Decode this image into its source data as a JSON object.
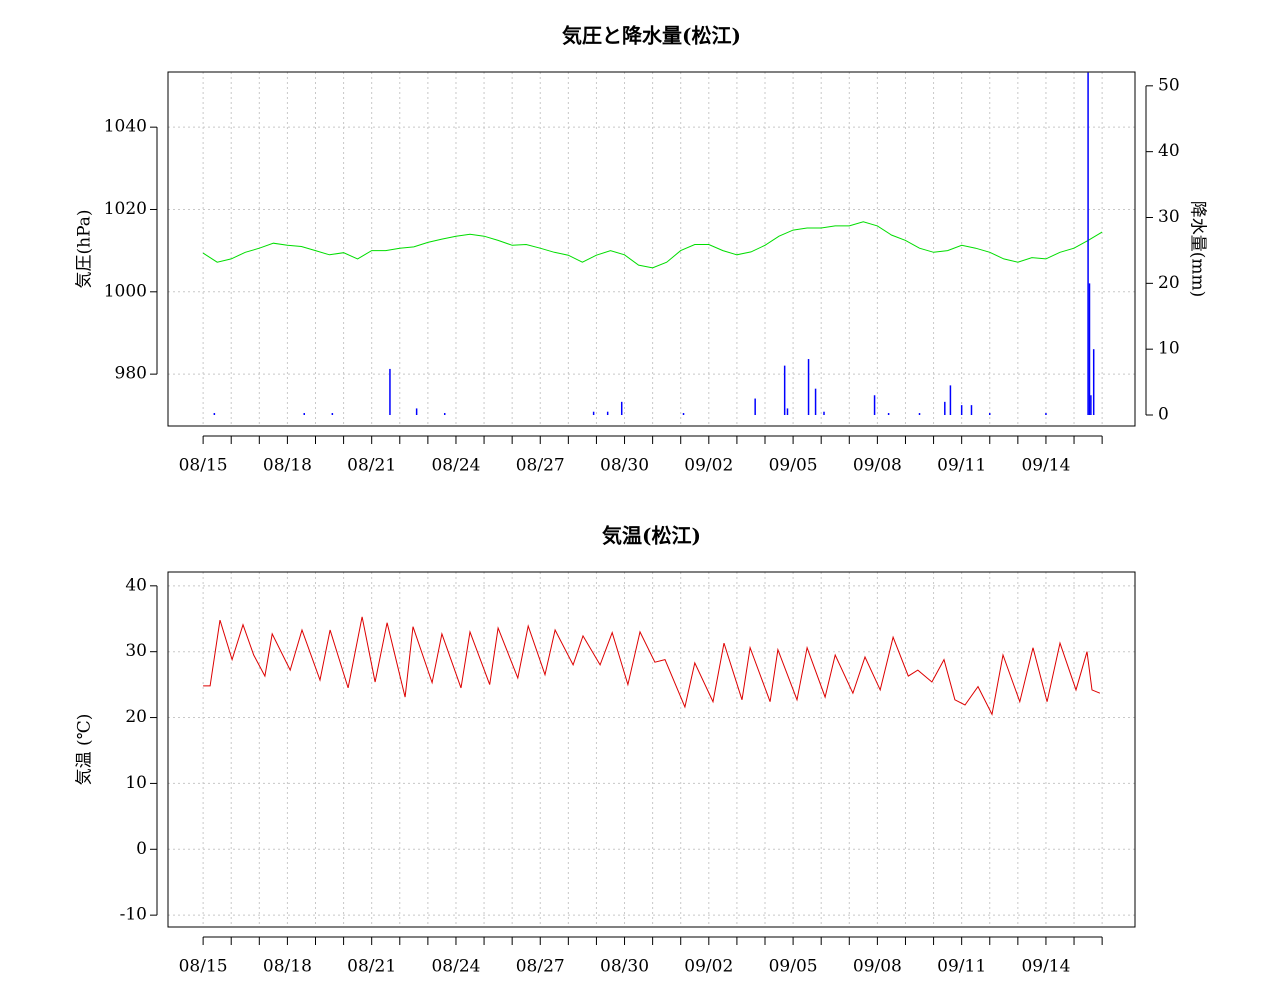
{
  "chart_data": [
    {
      "type": "line",
      "title": "気圧と降水量(松江)",
      "y_label": "気圧(hPa)",
      "y2_label": "降水量(mm)",
      "xlim": [
        -1.25,
        33.17
      ],
      "ylim": [
        967.4,
        1053.4
      ],
      "y2lim": [
        -1.67,
        52.1
      ],
      "xticks": [
        {
          "value": 0,
          "label": "08/15"
        },
        {
          "value": 3,
          "label": "08/18"
        },
        {
          "value": 6,
          "label": "08/21"
        },
        {
          "value": 9,
          "label": "08/24"
        },
        {
          "value": 12,
          "label": "08/27"
        },
        {
          "value": 15,
          "label": "08/30"
        },
        {
          "value": 18,
          "label": "09/02"
        },
        {
          "value": 21,
          "label": "09/05"
        },
        {
          "value": 24,
          "label": "09/08"
        },
        {
          "value": 27,
          "label": "09/11"
        },
        {
          "value": 30,
          "label": "09/14"
        }
      ],
      "xminor_ticks": [
        1,
        2,
        4,
        5,
        7,
        8,
        10,
        11,
        13,
        14,
        16,
        17,
        19,
        20,
        22,
        23,
        25,
        26,
        28,
        29,
        31,
        32
      ],
      "yticks": [
        980,
        1000,
        1020,
        1040
      ],
      "y2ticks": [
        0,
        10,
        20,
        30,
        40,
        50
      ],
      "grid": true,
      "series": [
        {
          "type": "line",
          "color": "#00dd00",
          "x": [
            0,
            0.5,
            1,
            1.5,
            2,
            2.5,
            3,
            3.5,
            4,
            4.5,
            5,
            5.5,
            6,
            6.5,
            7,
            7.5,
            8,
            8.5,
            9,
            9.5,
            10,
            10.5,
            11,
            11.5,
            12,
            12.5,
            13,
            13.5,
            14,
            14.5,
            15,
            15.5,
            16,
            16.5,
            17,
            17.5,
            18,
            18.5,
            19,
            19.5,
            20,
            20.5,
            21,
            21.5,
            22,
            22.5,
            23,
            23.5,
            24,
            24.5,
            25,
            25.5,
            26,
            26.5,
            27,
            27.5,
            28,
            28.5,
            29,
            29.5,
            30,
            30.5,
            31,
            31.5,
            32
          ],
          "values": [
            1009.4,
            1007.2,
            1008,
            1009.6,
            1010.6,
            1011.8,
            1011.3,
            1011,
            1010,
            1009,
            1009.5,
            1008,
            1010,
            1010,
            1010.6,
            1010.9,
            1012,
            1012.8,
            1013.5,
            1014,
            1013.5,
            1012.5,
            1011.3,
            1011.5,
            1010.6,
            1009.6,
            1008.9,
            1007.2,
            1008.9,
            1010,
            1009,
            1006.5,
            1005.8,
            1007.2,
            1010,
            1011.5,
            1011.5,
            1010,
            1009,
            1009.7,
            1011.3,
            1013.5,
            1015,
            1015.5,
            1015.5,
            1016,
            1016,
            1017,
            1016,
            1013.8,
            1012.5,
            1010.6,
            1009.6,
            1010,
            1011.3,
            1010.6,
            1009.6,
            1008,
            1007.2,
            1008.3,
            1008,
            1009.6,
            1010.6,
            1012.5,
            1014.5
          ]
        },
        {
          "type": "bar",
          "axis": "y2",
          "color": "#0000ff",
          "x": [
            0.4,
            3.6,
            4.6,
            6.65,
            7.6,
            8.6,
            13.9,
            14.4,
            14.9,
            17.1,
            19.65,
            20.7,
            20.8,
            21.55,
            21.8,
            22.1,
            23.9,
            24.4,
            25.5,
            26.4,
            26.6,
            27,
            27.35,
            28,
            30,
            31.5,
            31.55,
            31.6,
            31.7
          ],
          "values": [
            0.3,
            0.3,
            0.3,
            7,
            1,
            0.3,
            0.5,
            0.5,
            2,
            0.3,
            2.5,
            7.5,
            1,
            8.5,
            4,
            0.5,
            3,
            0.3,
            0.3,
            2,
            4.5,
            1.5,
            1.5,
            0.3,
            0.3,
            52,
            20,
            3,
            10
          ]
        }
      ]
    },
    {
      "type": "line",
      "title": "気温(松江)",
      "y_label": "気温 (℃)",
      "xlim": [
        -1.25,
        33.17
      ],
      "ylim": [
        -11.8,
        42.1
      ],
      "xticks": [
        {
          "value": 0,
          "label": "08/15"
        },
        {
          "value": 3,
          "label": "08/18"
        },
        {
          "value": 6,
          "label": "08/21"
        },
        {
          "value": 9,
          "label": "08/24"
        },
        {
          "value": 12,
          "label": "08/27"
        },
        {
          "value": 15,
          "label": "08/30"
        },
        {
          "value": 18,
          "label": "09/02"
        },
        {
          "value": 21,
          "label": "09/05"
        },
        {
          "value": 24,
          "label": "09/08"
        },
        {
          "value": 27,
          "label": "09/11"
        },
        {
          "value": 30,
          "label": "09/14"
        }
      ],
      "xminor_ticks": [
        1,
        2,
        4,
        5,
        7,
        8,
        10,
        11,
        13,
        14,
        16,
        17,
        19,
        20,
        22,
        23,
        25,
        26,
        28,
        29,
        31,
        32
      ],
      "yticks": [
        -10,
        0,
        10,
        20,
        30,
        40
      ],
      "grid": true,
      "series": [
        {
          "type": "line",
          "color": "#dd0000",
          "x": [
            0,
            0.25,
            0.6,
            1.03,
            1.42,
            1.8,
            2.2,
            2.46,
            3.1,
            3.52,
            4.16,
            4.52,
            5.16,
            5.66,
            6.12,
            6.55,
            7.19,
            7.47,
            8.15,
            8.5,
            9.18,
            9.5,
            10.2,
            10.5,
            11.2,
            11.57,
            12.17,
            12.53,
            13.17,
            13.52,
            14.13,
            14.56,
            15.12,
            15.55,
            16.08,
            16.44,
            17.15,
            17.5,
            18.15,
            18.54,
            19.18,
            19.47,
            20.18,
            20.46,
            21.14,
            21.5,
            22.14,
            22.5,
            23.13,
            23.56,
            24.1,
            24.56,
            25.1,
            25.44,
            25.94,
            26.37,
            26.76,
            27.12,
            27.58,
            28.08,
            28.47,
            29.07,
            29.54,
            30.04,
            30.5,
            31.07,
            31.46,
            31.64,
            31.92
          ],
          "values": [
            24.8,
            24.8,
            34.8,
            28.8,
            34.1,
            29.5,
            26.3,
            32.7,
            27.2,
            33.3,
            25.7,
            33.3,
            24.5,
            35.3,
            25.4,
            34.4,
            23.1,
            33.8,
            25.3,
            32.7,
            24.5,
            33,
            25,
            33.6,
            26,
            33.9,
            26.5,
            33.3,
            28,
            32.4,
            28,
            32.9,
            25,
            33,
            28.4,
            28.8,
            21.6,
            28.3,
            22.4,
            31.3,
            22.7,
            30.6,
            22.4,
            30.3,
            22.7,
            30.6,
            23.1,
            29.5,
            23.7,
            29.2,
            24.2,
            32.2,
            26.3,
            27.2,
            25.4,
            28.8,
            22.7,
            21.9,
            24.7,
            20.5,
            29.5,
            22.4,
            30.6,
            22.4,
            31.3,
            24.2,
            30,
            24.2,
            23.7
          ]
        }
      ]
    }
  ]
}
